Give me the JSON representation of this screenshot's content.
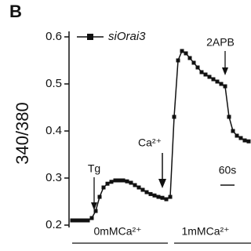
{
  "panel_label": "B",
  "chart_data": {
    "type": "line",
    "ylabel": "340/380",
    "series": [
      {
        "name": "siOrai3",
        "color": "#111111",
        "values": [
          0.21,
          0.21,
          0.21,
          0.21,
          0.21,
          0.215,
          0.23,
          0.26,
          0.28,
          0.288,
          0.292,
          0.295,
          0.295,
          0.295,
          0.293,
          0.29,
          0.285,
          0.28,
          0.275,
          0.27,
          0.266,
          0.263,
          0.26,
          0.258,
          0.255,
          0.26,
          0.43,
          0.55,
          0.57,
          0.565,
          0.555,
          0.545,
          0.535,
          0.525,
          0.52,
          0.515,
          0.51,
          0.505,
          0.5,
          0.495,
          0.43,
          0.4,
          0.39,
          0.385,
          0.38,
          0.378
        ]
      }
    ],
    "ylim": [
      0.2,
      0.6
    ],
    "yticks": [
      0.2,
      0.3,
      0.4,
      0.5,
      0.6
    ],
    "annotations": {
      "tg": "Tg",
      "ca": "Ca²⁺",
      "apb": "2APB",
      "scale": "60s",
      "phase1": "0mMCa²⁺",
      "phase2": "1mMCa²⁺"
    }
  }
}
